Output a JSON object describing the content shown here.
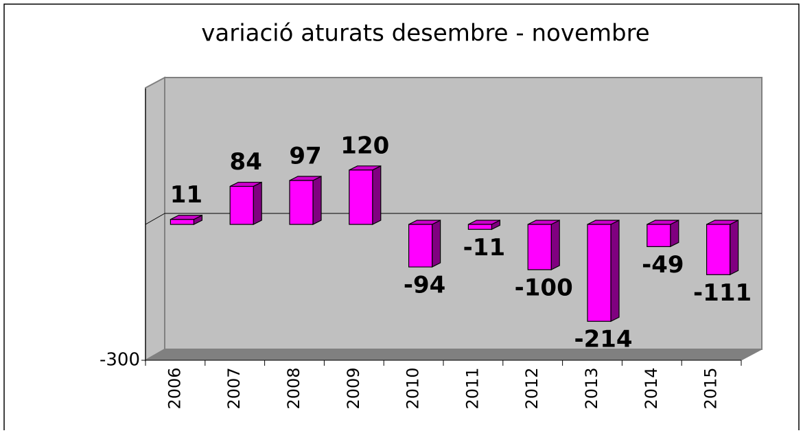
{
  "chart_data": {
    "type": "bar",
    "title": "variació aturats desembre - novembre",
    "categories": [
      "2006",
      "2007",
      "2008",
      "2009",
      "2010",
      "2011",
      "2012",
      "2013",
      "2014",
      "2015"
    ],
    "values": [
      11,
      84,
      97,
      120,
      -94,
      -11,
      -100,
      -214,
      -49,
      -111
    ],
    "color": "#ff00ff",
    "ylim": [
      -300,
      300
    ],
    "yticks": [
      -300
    ],
    "grid": false
  }
}
